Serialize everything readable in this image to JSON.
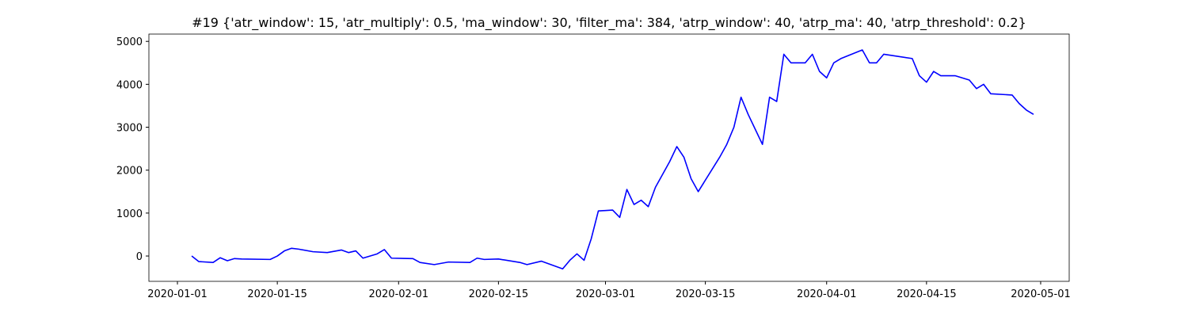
{
  "chart_data": {
    "type": "line",
    "title": "#19 {'atr_window': 15, 'atr_multiply': 0.5, 'ma_window': 30, 'filter_ma': 384, 'atrp_window': 40, 'atrp_ma': 40, 'atrp_threshold': 0.2}",
    "color": "#0000ff",
    "x": [
      "2020-01-03",
      "2020-01-04",
      "2020-01-06",
      "2020-01-07",
      "2020-01-08",
      "2020-01-09",
      "2020-01-10",
      "2020-01-14",
      "2020-01-15",
      "2020-01-16",
      "2020-01-17",
      "2020-01-18",
      "2020-01-20",
      "2020-01-22",
      "2020-01-24",
      "2020-01-25",
      "2020-01-26",
      "2020-01-27",
      "2020-01-29",
      "2020-01-30",
      "2020-01-31",
      "2020-02-03",
      "2020-02-04",
      "2020-02-06",
      "2020-02-08",
      "2020-02-11",
      "2020-02-12",
      "2020-02-13",
      "2020-02-15",
      "2020-02-18",
      "2020-02-19",
      "2020-02-21",
      "2020-02-24",
      "2020-02-25",
      "2020-02-26",
      "2020-02-27",
      "2020-02-28",
      "2020-02-29",
      "2020-03-02",
      "2020-03-03",
      "2020-03-04",
      "2020-03-05",
      "2020-03-06",
      "2020-03-07",
      "2020-03-08",
      "2020-03-09",
      "2020-03-10",
      "2020-03-11",
      "2020-03-12",
      "2020-03-13",
      "2020-03-14",
      "2020-03-17",
      "2020-03-18",
      "2020-03-19",
      "2020-03-20",
      "2020-03-21",
      "2020-03-22",
      "2020-03-23",
      "2020-03-24",
      "2020-03-25",
      "2020-03-26",
      "2020-03-27",
      "2020-03-28",
      "2020-03-29",
      "2020-03-30",
      "2020-03-31",
      "2020-04-01",
      "2020-04-02",
      "2020-04-03",
      "2020-04-06",
      "2020-04-07",
      "2020-04-08",
      "2020-04-09",
      "2020-04-13",
      "2020-04-14",
      "2020-04-15",
      "2020-04-16",
      "2020-04-17",
      "2020-04-19",
      "2020-04-21",
      "2020-04-22",
      "2020-04-23",
      "2020-04-24",
      "2020-04-27",
      "2020-04-28",
      "2020-04-29",
      "2020-04-30"
    ],
    "values": [
      0,
      -130,
      -150,
      -40,
      -110,
      -60,
      -70,
      -80,
      0,
      120,
      180,
      160,
      100,
      80,
      140,
      80,
      120,
      -50,
      50,
      150,
      -50,
      -60,
      -150,
      -200,
      -140,
      -150,
      -50,
      -80,
      -70,
      -150,
      -200,
      -120,
      -300,
      -100,
      50,
      -100,
      400,
      1050,
      1070,
      900,
      1550,
      1200,
      1300,
      1150,
      1600,
      1900,
      2200,
      2550,
      2300,
      1800,
      1500,
      2300,
      2600,
      3000,
      3700,
      3300,
      2950,
      2600,
      3700,
      3600,
      4700,
      4500,
      4500,
      4500,
      4700,
      4300,
      4150,
      4500,
      4600,
      4800,
      4500,
      4500,
      4700,
      4600,
      4200,
      4050,
      4300,
      4200,
      4200,
      4100,
      3900,
      4000,
      3780,
      3750,
      3550,
      3400,
      3300
    ],
    "xlim": [
      "2019-12-28",
      "2020-05-05"
    ],
    "xticks": [
      "2020-01-01",
      "2020-01-15",
      "2020-02-01",
      "2020-02-15",
      "2020-03-01",
      "2020-03-15",
      "2020-04-01",
      "2020-04-15",
      "2020-05-01"
    ],
    "ylim": [
      -590,
      5170
    ],
    "yticks": [
      0,
      1000,
      2000,
      3000,
      4000,
      5000
    ]
  }
}
